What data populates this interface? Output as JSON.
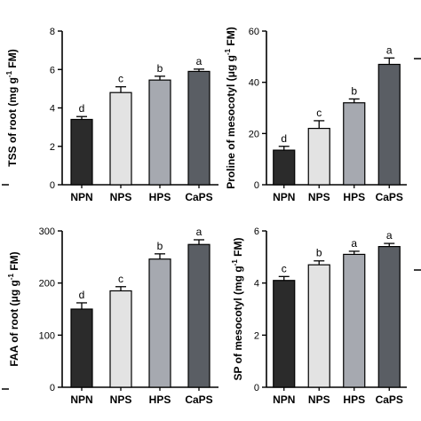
{
  "chart_data": [
    {
      "type": "bar",
      "categories": [
        "NPN",
        "NPS",
        "HPS",
        "CaPS"
      ],
      "values": [
        3.4,
        4.8,
        5.45,
        5.9
      ],
      "errors": [
        0.15,
        0.3,
        0.2,
        0.12
      ],
      "significance": [
        "d",
        "c",
        "b",
        "a"
      ],
      "ylabel_main": "TSS of root (mg g",
      "ylabel_sup": "-1",
      "ylabel_end": " FM)",
      "ylim": [
        0,
        8
      ],
      "yticks": [
        0,
        2,
        4,
        6,
        8
      ],
      "bar_colors": [
        "#2b2b2b",
        "#e3e3e3",
        "#a6a9b0",
        "#5a5e64"
      ]
    },
    {
      "type": "bar",
      "categories": [
        "NPN",
        "NPS",
        "HPS",
        "CaPS"
      ],
      "values": [
        13.5,
        22,
        32,
        47
      ],
      "errors": [
        1.5,
        3,
        1.5,
        2.5
      ],
      "significance": [
        "d",
        "c",
        "b",
        "a"
      ],
      "ylabel_main": "Proline of mesocotyl (μg g",
      "ylabel_sup": "-1",
      "ylabel_end": " FM)",
      "ylim": [
        0,
        60
      ],
      "yticks": [
        0,
        20,
        40,
        60
      ],
      "bar_colors": [
        "#2b2b2b",
        "#e3e3e3",
        "#a6a9b0",
        "#5a5e64"
      ]
    },
    {
      "type": "bar",
      "categories": [
        "NPN",
        "NPS",
        "HPS",
        "CaPS"
      ],
      "values": [
        150,
        185,
        246,
        274
      ],
      "errors": [
        12,
        8,
        10,
        9
      ],
      "significance": [
        "d",
        "c",
        "b",
        "a"
      ],
      "ylabel_main": "FAA of root (μg g",
      "ylabel_sup": "-1",
      "ylabel_end": " FM)",
      "ylim": [
        0,
        300
      ],
      "yticks": [
        0,
        100,
        200,
        300
      ],
      "bar_colors": [
        "#2b2b2b",
        "#e3e3e3",
        "#a6a9b0",
        "#5a5e64"
      ]
    },
    {
      "type": "bar",
      "categories": [
        "NPN",
        "NPS",
        "HPS",
        "CaPS"
      ],
      "values": [
        4.1,
        4.7,
        5.1,
        5.4
      ],
      "errors": [
        0.15,
        0.15,
        0.12,
        0.12
      ],
      "significance": [
        "c",
        "b",
        "a",
        "a"
      ],
      "ylabel_main": "SP of mesocotyl (mg g",
      "ylabel_sup": "-1",
      "ylabel_end": " FM)",
      "ylim": [
        0,
        6
      ],
      "yticks": [
        0,
        2,
        4,
        6
      ],
      "bar_colors": [
        "#2b2b2b",
        "#e3e3e3",
        "#a6a9b0",
        "#5a5e64"
      ]
    }
  ]
}
